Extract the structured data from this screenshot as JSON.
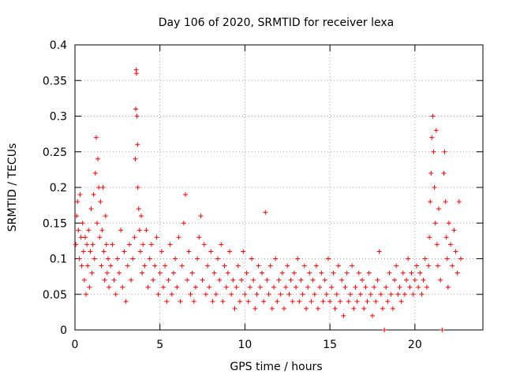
{
  "chart_data": {
    "type": "scatter",
    "title": "Day 106 of 2020, SRMTID for receiver lexa",
    "xlabel": "GPS time / hours",
    "ylabel": "SRMTID / TECUs",
    "xlim": [
      0,
      24
    ],
    "ylim": [
      0,
      0.4
    ],
    "x_ticks": [
      0,
      5,
      10,
      15,
      20
    ],
    "y_ticks": [
      0,
      0.05,
      0.1,
      0.15,
      0.2,
      0.25,
      0.3,
      0.35,
      0.4
    ],
    "x_tick_labels": [
      "0",
      "5",
      "10",
      "15",
      "20"
    ],
    "y_tick_labels": [
      "0",
      "0.05",
      "0.1",
      "0.15",
      "0.2",
      "0.25",
      "0.3",
      "0.35",
      "0.4"
    ],
    "grid": true,
    "marker": "plus",
    "series_color": "#ff0000",
    "series": [
      {
        "name": "SRMTID",
        "points": [
          [
            0.05,
            0.12
          ],
          [
            0.1,
            0.16
          ],
          [
            0.15,
            0.18
          ],
          [
            0.2,
            0.14
          ],
          [
            0.25,
            0.1
          ],
          [
            0.3,
            0.19
          ],
          [
            0.35,
            0.13
          ],
          [
            0.4,
            0.09
          ],
          [
            0.45,
            0.15
          ],
          [
            0.5,
            0.11
          ],
          [
            0.55,
            0.07
          ],
          [
            0.6,
            0.13
          ],
          [
            0.65,
            0.05
          ],
          [
            0.7,
            0.12
          ],
          [
            0.75,
            0.09
          ],
          [
            0.8,
            0.14
          ],
          [
            0.85,
            0.06
          ],
          [
            0.9,
            0.11
          ],
          [
            0.95,
            0.17
          ],
          [
            1.0,
            0.08
          ],
          [
            1.05,
            0.12
          ],
          [
            1.1,
            0.19
          ],
          [
            1.15,
            0.1
          ],
          [
            1.2,
            0.22
          ],
          [
            1.25,
            0.27
          ],
          [
            1.3,
            0.15
          ],
          [
            1.35,
            0.24
          ],
          [
            1.4,
            0.2
          ],
          [
            1.45,
            0.13
          ],
          [
            1.5,
            0.18
          ],
          [
            1.55,
            0.09
          ],
          [
            1.6,
            0.14
          ],
          [
            1.65,
            0.2
          ],
          [
            1.7,
            0.11
          ],
          [
            1.75,
            0.07
          ],
          [
            1.8,
            0.16
          ],
          [
            1.85,
            0.12
          ],
          [
            1.9,
            0.08
          ],
          [
            1.95,
            0.1
          ],
          [
            2.0,
            0.06
          ],
          [
            2.1,
            0.09
          ],
          [
            2.2,
            0.12
          ],
          [
            2.3,
            0.07
          ],
          [
            2.4,
            0.05
          ],
          [
            2.5,
            0.1
          ],
          [
            2.6,
            0.08
          ],
          [
            2.7,
            0.14
          ],
          [
            2.8,
            0.06
          ],
          [
            2.9,
            0.11
          ],
          [
            3.0,
            0.04
          ],
          [
            3.1,
            0.09
          ],
          [
            3.2,
            0.12
          ],
          [
            3.3,
            0.07
          ],
          [
            3.4,
            0.1
          ],
          [
            3.5,
            0.13
          ],
          [
            3.55,
            0.24
          ],
          [
            3.58,
            0.31
          ],
          [
            3.6,
            0.365
          ],
          [
            3.62,
            0.36
          ],
          [
            3.65,
            0.3
          ],
          [
            3.68,
            0.26
          ],
          [
            3.7,
            0.2
          ],
          [
            3.75,
            0.17
          ],
          [
            3.8,
            0.14
          ],
          [
            3.85,
            0.11
          ],
          [
            3.9,
            0.16
          ],
          [
            3.95,
            0.08
          ],
          [
            4.0,
            0.12
          ],
          [
            4.1,
            0.09
          ],
          [
            4.2,
            0.14
          ],
          [
            4.3,
            0.06
          ],
          [
            4.4,
            0.1
          ],
          [
            4.5,
            0.12
          ],
          [
            4.6,
            0.07
          ],
          [
            4.7,
            0.09
          ],
          [
            4.8,
            0.13
          ],
          [
            4.9,
            0.05
          ],
          [
            5.0,
            0.08
          ],
          [
            5.1,
            0.11
          ],
          [
            5.2,
            0.06
          ],
          [
            5.3,
            0.09
          ],
          [
            5.4,
            0.04
          ],
          [
            5.5,
            0.07
          ],
          [
            5.6,
            0.12
          ],
          [
            5.7,
            0.05
          ],
          [
            5.8,
            0.08
          ],
          [
            5.9,
            0.1
          ],
          [
            6.0,
            0.06
          ],
          [
            6.1,
            0.13
          ],
          [
            6.2,
            0.04
          ],
          [
            6.3,
            0.09
          ],
          [
            6.4,
            0.15
          ],
          [
            6.5,
            0.19
          ],
          [
            6.6,
            0.07
          ],
          [
            6.7,
            0.11
          ],
          [
            6.8,
            0.05
          ],
          [
            6.9,
            0.08
          ],
          [
            7.0,
            0.04
          ],
          [
            7.1,
            0.06
          ],
          [
            7.2,
            0.1
          ],
          [
            7.3,
            0.13
          ],
          [
            7.4,
            0.16
          ],
          [
            7.5,
            0.07
          ],
          [
            7.6,
            0.12
          ],
          [
            7.7,
            0.05
          ],
          [
            7.8,
            0.09
          ],
          [
            7.9,
            0.06
          ],
          [
            8.0,
            0.11
          ],
          [
            8.1,
            0.04
          ],
          [
            8.2,
            0.08
          ],
          [
            8.3,
            0.05
          ],
          [
            8.4,
            0.1
          ],
          [
            8.5,
            0.07
          ],
          [
            8.6,
            0.12
          ],
          [
            8.7,
            0.04
          ],
          [
            8.8,
            0.09
          ],
          [
            8.9,
            0.06
          ],
          [
            9.0,
            0.08
          ],
          [
            9.1,
            0.11
          ],
          [
            9.2,
            0.05
          ],
          [
            9.3,
            0.07
          ],
          [
            9.4,
            0.03
          ],
          [
            9.5,
            0.06
          ],
          [
            9.6,
            0.09
          ],
          [
            9.7,
            0.04
          ],
          [
            9.8,
            0.07
          ],
          [
            9.9,
            0.11
          ],
          [
            10.0,
            0.05
          ],
          [
            10.1,
            0.08
          ],
          [
            10.2,
            0.04
          ],
          [
            10.3,
            0.06
          ],
          [
            10.4,
            0.1
          ],
          [
            10.5,
            0.07
          ],
          [
            10.6,
            0.03
          ],
          [
            10.7,
            0.05
          ],
          [
            10.8,
            0.09
          ],
          [
            10.9,
            0.06
          ],
          [
            11.0,
            0.08
          ],
          [
            11.1,
            0.04
          ],
          [
            11.2,
            0.165
          ],
          [
            11.3,
            0.07
          ],
          [
            11.4,
            0.05
          ],
          [
            11.5,
            0.09
          ],
          [
            11.6,
            0.03
          ],
          [
            11.7,
            0.06
          ],
          [
            11.8,
            0.1
          ],
          [
            11.9,
            0.04
          ],
          [
            12.0,
            0.07
          ],
          [
            12.1,
            0.05
          ],
          [
            12.2,
            0.08
          ],
          [
            12.3,
            0.03
          ],
          [
            12.4,
            0.06
          ],
          [
            12.5,
            0.09
          ],
          [
            12.6,
            0.05
          ],
          [
            12.7,
            0.07
          ],
          [
            12.8,
            0.04
          ],
          [
            12.9,
            0.08
          ],
          [
            13.0,
            0.06
          ],
          [
            13.1,
            0.1
          ],
          [
            13.2,
            0.04
          ],
          [
            13.3,
            0.07
          ],
          [
            13.4,
            0.05
          ],
          [
            13.5,
            0.09
          ],
          [
            13.6,
            0.03
          ],
          [
            13.7,
            0.06
          ],
          [
            13.8,
            0.08
          ],
          [
            13.9,
            0.04
          ],
          [
            14.0,
            0.07
          ],
          [
            14.1,
            0.05
          ],
          [
            14.2,
            0.09
          ],
          [
            14.3,
            0.03
          ],
          [
            14.4,
            0.06
          ],
          [
            14.5,
            0.08
          ],
          [
            14.6,
            0.04
          ],
          [
            14.7,
            0.07
          ],
          [
            14.8,
            0.05
          ],
          [
            14.9,
            0.1
          ],
          [
            15.0,
            0.04
          ],
          [
            15.1,
            0.06
          ],
          [
            15.2,
            0.08
          ],
          [
            15.3,
            0.03
          ],
          [
            15.4,
            0.05
          ],
          [
            15.5,
            0.09
          ],
          [
            15.6,
            0.04
          ],
          [
            15.7,
            0.07
          ],
          [
            15.8,
            0.02
          ],
          [
            15.9,
            0.06
          ],
          [
            16.0,
            0.08
          ],
          [
            16.1,
            0.04
          ],
          [
            16.2,
            0.05
          ],
          [
            16.3,
            0.09
          ],
          [
            16.4,
            0.03
          ],
          [
            16.5,
            0.06
          ],
          [
            16.6,
            0.04
          ],
          [
            16.7,
            0.08
          ],
          [
            16.8,
            0.05
          ],
          [
            16.9,
            0.07
          ],
          [
            17.0,
            0.03
          ],
          [
            17.1,
            0.06
          ],
          [
            17.2,
            0.04
          ],
          [
            17.3,
            0.08
          ],
          [
            17.4,
            0.05
          ],
          [
            17.5,
            0.02
          ],
          [
            17.6,
            0.06
          ],
          [
            17.7,
            0.04
          ],
          [
            17.8,
            0.07
          ],
          [
            17.9,
            0.11
          ],
          [
            18.0,
            0.05
          ],
          [
            18.1,
            0.03
          ],
          [
            18.2,
            0.0
          ],
          [
            18.3,
            0.06
          ],
          [
            18.4,
            0.04
          ],
          [
            18.5,
            0.08
          ],
          [
            18.6,
            0.05
          ],
          [
            18.7,
            0.03
          ],
          [
            18.8,
            0.07
          ],
          [
            18.9,
            0.09
          ],
          [
            19.0,
            0.05
          ],
          [
            19.1,
            0.06
          ],
          [
            19.2,
            0.04
          ],
          [
            19.3,
            0.08
          ],
          [
            19.4,
            0.05
          ],
          [
            19.5,
            0.07
          ],
          [
            19.6,
            0.1
          ],
          [
            19.7,
            0.06
          ],
          [
            19.8,
            0.08
          ],
          [
            19.9,
            0.05
          ],
          [
            20.0,
            0.07
          ],
          [
            20.1,
            0.09
          ],
          [
            20.2,
            0.06
          ],
          [
            20.3,
            0.08
          ],
          [
            20.4,
            0.05
          ],
          [
            20.5,
            0.07
          ],
          [
            20.6,
            0.1
          ],
          [
            20.7,
            0.06
          ],
          [
            20.8,
            0.09
          ],
          [
            20.85,
            0.13
          ],
          [
            20.9,
            0.18
          ],
          [
            20.95,
            0.22
          ],
          [
            21.0,
            0.27
          ],
          [
            21.05,
            0.3
          ],
          [
            21.1,
            0.25
          ],
          [
            21.15,
            0.2
          ],
          [
            21.2,
            0.15
          ],
          [
            21.25,
            0.28
          ],
          [
            21.3,
            0.12
          ],
          [
            21.35,
            0.09
          ],
          [
            21.4,
            0.17
          ],
          [
            21.5,
            0.07
          ],
          [
            21.6,
            0.0
          ],
          [
            21.7,
            0.22
          ],
          [
            21.75,
            0.25
          ],
          [
            21.8,
            0.18
          ],
          [
            21.85,
            0.13
          ],
          [
            21.9,
            0.1
          ],
          [
            21.95,
            0.06
          ],
          [
            22.0,
            0.15
          ],
          [
            22.1,
            0.12
          ],
          [
            22.2,
            0.09
          ],
          [
            22.3,
            0.14
          ],
          [
            22.4,
            0.11
          ],
          [
            22.5,
            0.08
          ],
          [
            22.6,
            0.18
          ],
          [
            22.7,
            0.1
          ]
        ]
      }
    ]
  }
}
